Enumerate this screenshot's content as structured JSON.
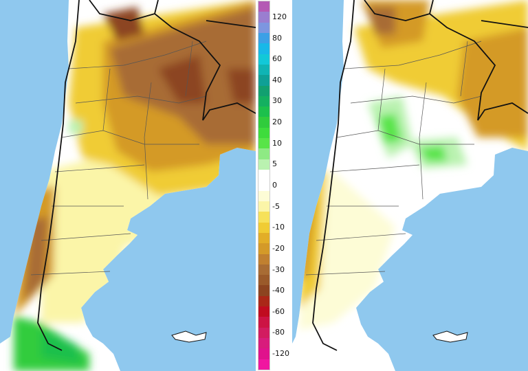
{
  "colors": {
    "ocean": "#8fc8ee",
    "land_neutral": "#ffffff",
    "border_country": "#111111",
    "border_province": "#555555"
  },
  "legend": {
    "levels": [
      {
        "label": "",
        "color": "#b45ab4"
      },
      {
        "label": "120",
        "color": "#9a7ed0"
      },
      {
        "label": "",
        "color": "#7d96e0"
      },
      {
        "label": "80",
        "color": "#3ca0e6"
      },
      {
        "label": "",
        "color": "#18b8e8"
      },
      {
        "label": "60",
        "color": "#12c8d8"
      },
      {
        "label": "",
        "color": "#10b4b4"
      },
      {
        "label": "40",
        "color": "#0fa096"
      },
      {
        "label": "",
        "color": "#12a070"
      },
      {
        "label": "30",
        "color": "#14b060"
      },
      {
        "label": "",
        "color": "#1cc04c"
      },
      {
        "label": "20",
        "color": "#30cc3c"
      },
      {
        "label": "",
        "color": "#3edc3c"
      },
      {
        "label": "10",
        "color": "#58e448"
      },
      {
        "label": "",
        "color": "#8eea84"
      },
      {
        "label": "5",
        "color": "#baf2b0"
      },
      {
        "label": "",
        "color": "#ffffff"
      },
      {
        "label": "0",
        "color": "#ffffff"
      },
      {
        "label": "",
        "color": "#fdfcd6"
      },
      {
        "label": "-5",
        "color": "#fbf5a8"
      },
      {
        "label": "",
        "color": "#f6e15a"
      },
      {
        "label": "-10",
        "color": "#f0cc34"
      },
      {
        "label": "",
        "color": "#e2ae28"
      },
      {
        "label": "-20",
        "color": "#d49a28"
      },
      {
        "label": "",
        "color": "#c08030"
      },
      {
        "label": "-30",
        "color": "#a86c34"
      },
      {
        "label": "",
        "color": "#9a5a2a"
      },
      {
        "label": "-40",
        "color": "#8c4420"
      },
      {
        "label": "",
        "color": "#aa2818"
      },
      {
        "label": "-60",
        "color": "#c00c20"
      },
      {
        "label": "",
        "color": "#cc1444"
      },
      {
        "label": "-80",
        "color": "#d21c60"
      },
      {
        "label": "",
        "color": "#d81c7c"
      },
      {
        "label": "-120",
        "color": "#e0128c"
      },
      {
        "label": "",
        "color": "#f016a0"
      }
    ]
  }
}
